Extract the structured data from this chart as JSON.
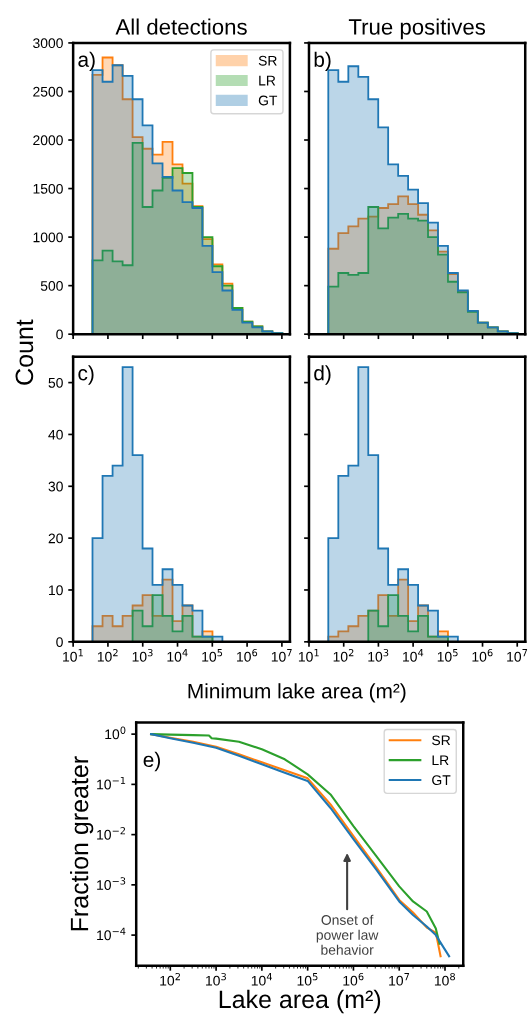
{
  "chart_data": [
    {
      "type": "histogram",
      "title": "All detections",
      "ylabel": "Count",
      "annotations": [
        "a)"
      ],
      "legend": "top right",
      "grid": false,
      "tick_labels": "y",
      "log": "x",
      "bins": [
        36,
        70,
        136,
        264,
        511,
        989,
        1910,
        3710,
        7180,
        13900,
        26900,
        52100,
        101000,
        195000,
        378000,
        733000,
        1420000,
        2750000,
        5320000,
        10300000
      ],
      "xlim": [
        10,
        17000000
      ],
      "xticks": [
        {
          "value": 10,
          "label": null
        },
        {
          "value": 100,
          "label": null
        },
        {
          "value": 1000,
          "label": null
        },
        {
          "value": 10000,
          "label": null
        },
        {
          "value": 100000,
          "label": null
        },
        {
          "value": 1000000,
          "label": null
        },
        {
          "value": 10000000,
          "label": null
        }
      ],
      "ylim": [
        0,
        3000
      ],
      "yticks": [
        0,
        500,
        1000,
        1500,
        2000,
        2500,
        3000
      ],
      "series": [
        {
          "name": "SR",
          "color": "#ff7f0e",
          "values": [
            2670,
            2850,
            2770,
            2420,
            2030,
            1910,
            1850,
            1980,
            1750,
            1550,
            1320,
            980,
            720,
            520,
            270,
            130,
            80,
            30,
            10
          ]
        },
        {
          "name": "LR",
          "color": "#2ca02c",
          "values": [
            760,
            860,
            750,
            710,
            1970,
            1310,
            1480,
            1610,
            1710,
            1660,
            1310,
            1000,
            700,
            500,
            270,
            130,
            80,
            30,
            10
          ]
        },
        {
          "name": "GT",
          "color": "#1f77b4",
          "values": [
            2720,
            2600,
            2770,
            2660,
            2420,
            2150,
            1760,
            1620,
            1480,
            1360,
            1300,
            910,
            640,
            450,
            250,
            120,
            70,
            30,
            10
          ]
        }
      ]
    },
    {
      "type": "histogram",
      "title": "True positives",
      "annotations": [
        "b)"
      ],
      "grid": false,
      "tick_labels": false,
      "log": "x",
      "bins": [
        36,
        70,
        136,
        264,
        511,
        989,
        1910,
        3710,
        7180,
        13900,
        26900,
        52100,
        101000,
        195000,
        378000,
        733000,
        1420000,
        2750000,
        5320000,
        10300000
      ],
      "xlim": [
        10,
        17000000
      ],
      "xticks": [
        {
          "value": 10,
          "label": null
        },
        {
          "value": 100,
          "label": null
        },
        {
          "value": 1000,
          "label": null
        },
        {
          "value": 10000,
          "label": null
        },
        {
          "value": 100000,
          "label": null
        },
        {
          "value": 1000000,
          "label": null
        },
        {
          "value": 10000000,
          "label": null
        }
      ],
      "ylim": [
        0,
        3000
      ],
      "yticks": [
        0,
        500,
        1000,
        1500,
        2000,
        2500,
        3000
      ],
      "series": [
        {
          "color": "#ff7f0e",
          "values": [
            880,
            1040,
            1110,
            1190,
            1210,
            1300,
            1340,
            1420,
            1340,
            1230,
            1070,
            850,
            620,
            440,
            240,
            120,
            70,
            30,
            10
          ]
        },
        {
          "color": "#2ca02c",
          "values": [
            490,
            630,
            610,
            630,
            1310,
            1090,
            1200,
            1240,
            1190,
            1170,
            1000,
            820,
            540,
            430,
            230,
            120,
            70,
            30,
            10
          ]
        },
        {
          "color": "#1f77b4",
          "values": [
            2720,
            2600,
            2760,
            2650,
            2420,
            2130,
            1750,
            1630,
            1490,
            1350,
            1150,
            910,
            630,
            450,
            240,
            120,
            70,
            30,
            10
          ]
        }
      ]
    },
    {
      "type": "histogram",
      "xlabel": "Minimum lake area (m²)",
      "annotations": [
        "c)"
      ],
      "grid": false,
      "log": "x",
      "bins": [
        36,
        70,
        136,
        264,
        511,
        989,
        1910,
        3710,
        7180,
        13900,
        26900,
        52100,
        101000,
        195000,
        378000,
        733000,
        1420000,
        2750000,
        5320000,
        10300000
      ],
      "xlim": [
        10,
        17000000
      ],
      "xticks": [
        {
          "value": 10,
          "label": "10$^{1}$"
        },
        {
          "value": 100,
          "label": "10$^{2}$"
        },
        {
          "value": 1000,
          "label": "10$^{3}$"
        },
        {
          "value": 10000,
          "label": "10$^{4}$"
        },
        {
          "value": 100000,
          "label": "10$^{5}$"
        },
        {
          "value": 1000000,
          "label": "10$^{6}$"
        },
        {
          "value": 10000000,
          "label": "10$^{7}$"
        }
      ],
      "ylim": [
        0,
        55
      ],
      "yticks": [
        0,
        10,
        20,
        30,
        40,
        50
      ],
      "series": [
        {
          "color": "#ff7f0e",
          "values": [
            3,
            5,
            3,
            5,
            7,
            9,
            5,
            12,
            4,
            7,
            1,
            2,
            0,
            0,
            0,
            0,
            0,
            0,
            0
          ]
        },
        {
          "color": "#2ca02c",
          "values": [
            0,
            0,
            0,
            0,
            6,
            3,
            9,
            5,
            2,
            5,
            1,
            1,
            0,
            0,
            0,
            0,
            0,
            0,
            0
          ]
        },
        {
          "color": "#1f77b4",
          "values": [
            20,
            32,
            34,
            53,
            36,
            18,
            11,
            14,
            11,
            7,
            6,
            1,
            1,
            0,
            0,
            0,
            0,
            0,
            0
          ]
        }
      ]
    },
    {
      "type": "histogram",
      "annotations": [
        "d)"
      ],
      "grid": false,
      "tick_labels": "x",
      "log": "x",
      "bins": [
        36,
        70,
        136,
        264,
        511,
        989,
        1910,
        3710,
        7180,
        13900,
        26900,
        52100,
        101000,
        195000,
        378000,
        733000,
        1420000,
        2750000,
        5320000,
        10300000
      ],
      "xlim": [
        10,
        17000000
      ],
      "xticks": [
        {
          "value": 10,
          "label": "10$^{1}$"
        },
        {
          "value": 100,
          "label": "10$^{2}$"
        },
        {
          "value": 1000,
          "label": "10$^{3}$"
        },
        {
          "value": 10000,
          "label": "10$^{4}$"
        },
        {
          "value": 100000,
          "label": "10$^{5}$"
        },
        {
          "value": 1000000,
          "label": "10$^{6}$"
        },
        {
          "value": 10000000,
          "label": "10$^{7}$"
        }
      ],
      "ylim": [
        0,
        55
      ],
      "yticks": [
        0,
        10,
        20,
        30,
        40,
        50
      ],
      "series": [
        {
          "color": "#ff7f0e",
          "values": [
            1,
            2,
            3,
            5,
            6,
            9,
            5,
            12,
            4,
            7,
            1,
            2,
            0,
            0,
            0,
            0,
            0,
            0,
            0
          ]
        },
        {
          "color": "#2ca02c",
          "values": [
            0,
            0,
            0,
            0,
            6,
            3,
            9,
            5,
            2,
            5,
            1,
            1,
            0,
            0,
            0,
            0,
            0,
            0,
            0
          ]
        },
        {
          "color": "#1f77b4",
          "values": [
            20,
            32,
            34,
            53,
            36,
            18,
            11,
            14,
            11,
            7,
            6,
            1,
            1,
            0,
            0,
            0,
            0,
            0,
            0
          ]
        }
      ]
    },
    {
      "type": "line",
      "xlabel": "Lake area (m²)",
      "ylabel": "Fraction greater",
      "log": "xy",
      "legend": "top right",
      "grid": false,
      "marker": "none",
      "line_style": "solid",
      "annotations": [
        "e)",
        "Onset of\npower law\nbehavior"
      ],
      "xlim": [
        18,
        250000000
      ],
      "xticks": [
        {
          "value": 100,
          "label": "10$^{2}$"
        },
        {
          "value": 1000,
          "label": "10$^{3}$"
        },
        {
          "value": 10000,
          "label": "10$^{4}$"
        },
        {
          "value": 100000,
          "label": "10$^{5}$"
        },
        {
          "value": 1000000,
          "label": "10$^{6}$"
        },
        {
          "value": 10000000,
          "label": "10$^{7}$"
        },
        {
          "value": 100000000,
          "label": "10$^{8}$"
        }
      ],
      "ylim": [
        2.45e-05,
        1.7
      ],
      "yticks": [
        {
          "value": 1,
          "label": "10$^{0}$"
        },
        {
          "value": 0.1,
          "label": "10$^{−1}$"
        },
        {
          "value": 0.01,
          "label": "10$^{−2}$"
        },
        {
          "value": 0.001,
          "label": "10$^{−3}$"
        },
        {
          "value": 0.0001,
          "label": "10$^{−4}$"
        }
      ],
      "series": [
        {
          "name": "SR",
          "color": "#ff7f0e",
          "x": [
            38,
            100,
            316,
            1000,
            3160,
            10000,
            31600,
            100000,
            316000,
            1000000,
            3160000,
            10000000,
            20000000,
            40000000,
            63000000,
            80000000
          ],
          "values": [
            1,
            0.851,
            0.708,
            0.562,
            0.398,
            0.275,
            0.191,
            0.132,
            0.0398,
            0.00933,
            0.00224,
            0.000501,
            0.000282,
            0.000141,
            0.000112,
            3.8e-05
          ]
        },
        {
          "name": "LR",
          "color": "#2ca02c",
          "x": [
            38,
            100,
            316,
            700,
            800,
            1000,
            3160,
            10000,
            31600,
            100000,
            316000,
            1000000,
            3160000,
            10000000,
            20000000,
            40000000,
            63000000,
            76000000
          ],
          "values": [
            1,
            0.977,
            0.955,
            0.94,
            0.83,
            0.813,
            0.708,
            0.501,
            0.316,
            0.158,
            0.0631,
            0.0148,
            0.00372,
            0.000933,
            0.000468,
            0.000295,
            0.000135,
            6.76e-05
          ]
        },
        {
          "name": "GT",
          "color": "#1f77b4",
          "x": [
            38,
            100,
            316,
            1000,
            3160,
            10000,
            31600,
            100000,
            316000,
            1000000,
            3160000,
            10000000,
            20000000,
            40000000,
            63000000,
            123000000
          ],
          "values": [
            1,
            0.832,
            0.676,
            0.537,
            0.372,
            0.251,
            0.17,
            0.117,
            0.0339,
            0.00813,
            0.002,
            0.000468,
            0.000251,
            0.000148,
            0.0001,
            3.8e-05
          ]
        }
      ]
    }
  ]
}
